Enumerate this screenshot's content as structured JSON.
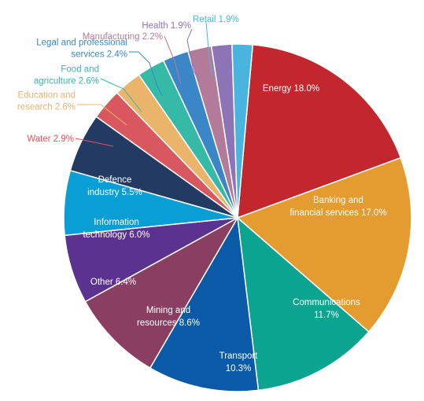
{
  "chart_data": {
    "type": "pie",
    "start_angle_deg": -85,
    "direction": "clockwise",
    "slices": [
      {
        "lines": [
          "Energy 18.0%"
        ],
        "value": 18.0,
        "color": "#c1272d",
        "label": "inside"
      },
      {
        "lines": [
          "Banking and",
          "financial services 17.0%"
        ],
        "value": 17.0,
        "color": "#e49b30",
        "label": "inside"
      },
      {
        "lines": [
          "Communications",
          "11.7%"
        ],
        "value": 11.7,
        "color": "#0aa490",
        "label": "inside"
      },
      {
        "lines": [
          "Transport",
          "10.3%"
        ],
        "value": 10.3,
        "color": "#0b5aa8",
        "label": "inside"
      },
      {
        "lines": [
          "Mining and",
          "resources 8.6%"
        ],
        "value": 8.6,
        "color": "#8a3f62",
        "label": "inside"
      },
      {
        "lines": [
          "Other 6.4%"
        ],
        "value": 6.4,
        "color": "#5c3291",
        "label": "inside"
      },
      {
        "lines": [
          "Information",
          "technology 6.0%"
        ],
        "value": 6.0,
        "color": "#0a9fd4",
        "label": "inside"
      },
      {
        "lines": [
          "Defence",
          "industry 5.5%"
        ],
        "value": 5.5,
        "color": "#233b62",
        "label": "inside"
      },
      {
        "lines": [
          "Water 2.9%"
        ],
        "value": 2.9,
        "color": "#d9575e",
        "label": "outside"
      },
      {
        "lines": [
          "Education and",
          "research 2.6%"
        ],
        "value": 2.6,
        "color": "#ebb46b",
        "label": "outside"
      },
      {
        "lines": [
          "Food and",
          "agriculture 2.6%"
        ],
        "value": 2.6,
        "color": "#37b9a8",
        "label": "outside"
      },
      {
        "lines": [
          "Legal and professional",
          "services 2.4%"
        ],
        "value": 2.4,
        "color": "#3a86c6",
        "label": "outside"
      },
      {
        "lines": [
          "Manufacturing 2.2%"
        ],
        "value": 2.2,
        "color": "#b47a99",
        "label": "outside"
      },
      {
        "lines": [
          "Health 1.9%"
        ],
        "value": 1.9,
        "color": "#8c74b6",
        "label": "outside"
      },
      {
        "lines": [
          "Retail 1.9%"
        ],
        "value": 1.9,
        "color": "#49b5de",
        "label": "outside"
      }
    ]
  }
}
